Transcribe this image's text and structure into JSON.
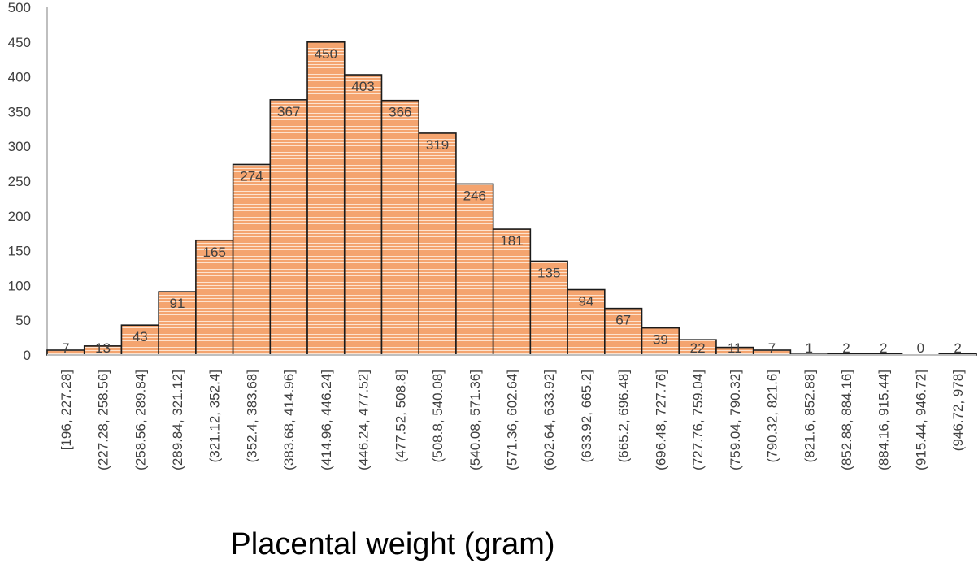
{
  "chart_data": {
    "type": "bar",
    "title": "",
    "xlabel": "Placental weight (gram)",
    "ylabel": "",
    "ylim": [
      0,
      500
    ],
    "yticks": [
      0,
      50,
      100,
      150,
      200,
      250,
      300,
      350,
      400,
      450,
      500
    ],
    "grid": false,
    "legend": "none",
    "categories": [
      "[196, 227.28]",
      "(227.28, 258.56]",
      "(258.56, 289.84]",
      "(289.84, 321.12]",
      "(321.12, 352.4]",
      "(352.4, 383.68]",
      "(383.68, 414.96]",
      "(414.96, 446.24]",
      "(446.24, 477.52]",
      "(477.52, 508.8]",
      "(508.8, 540.08]",
      "(540.08, 571.36]",
      "(571.36, 602.64]",
      "(602.64, 633.92]",
      "(633.92, 665.2]",
      "(665.2, 696.48]",
      "(696.48, 727.76]",
      "(727.76, 759.04]",
      "(759.04, 790.32]",
      "(790.32, 821.6]",
      "(821.6, 852.88]",
      "(852.88, 884.16]",
      "(884.16, 915.44]",
      "(915.44, 946.72]",
      "(946.72, 978]"
    ],
    "values": [
      7,
      13,
      43,
      91,
      165,
      274,
      367,
      450,
      403,
      366,
      319,
      246,
      181,
      135,
      94,
      67,
      39,
      22,
      11,
      7,
      1,
      2,
      2,
      0,
      2
    ],
    "colors": {
      "bar_fill": "#f4a46f",
      "bar_stripe": "#fde3cf",
      "bar_edge": "#1a1a1a",
      "axis": "#bfbfbf"
    }
  }
}
